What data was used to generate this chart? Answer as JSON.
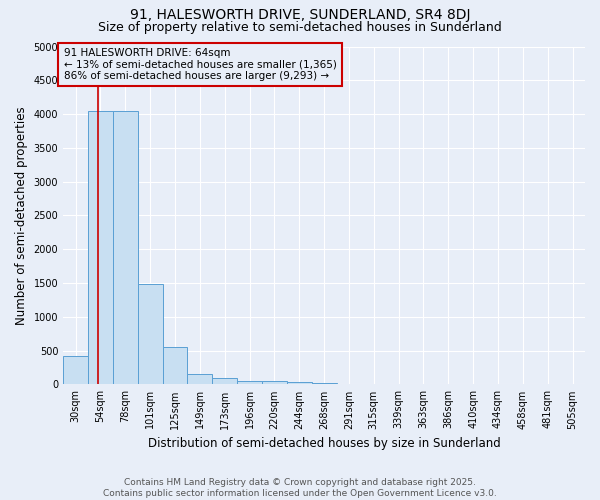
{
  "title": "91, HALESWORTH DRIVE, SUNDERLAND, SR4 8DJ",
  "subtitle": "Size of property relative to semi-detached houses in Sunderland",
  "xlabel": "Distribution of semi-detached houses by size in Sunderland",
  "ylabel": "Number of semi-detached properties",
  "bin_labels": [
    "30sqm",
    "54sqm",
    "78sqm",
    "101sqm",
    "125sqm",
    "149sqm",
    "173sqm",
    "196sqm",
    "220sqm",
    "244sqm",
    "268sqm",
    "291sqm",
    "315sqm",
    "339sqm",
    "363sqm",
    "386sqm",
    "410sqm",
    "434sqm",
    "458sqm",
    "481sqm",
    "505sqm"
  ],
  "bar_heights": [
    425,
    4050,
    4050,
    1480,
    550,
    155,
    90,
    55,
    50,
    40,
    25,
    0,
    0,
    0,
    0,
    0,
    0,
    0,
    0,
    0
  ],
  "bar_color": "#c8dff2",
  "bar_edgecolor": "#5a9fd4",
  "property_bin_index": 1,
  "property_line_color": "#cc0000",
  "annotation_line1": "91 HALESWORTH DRIVE: 64sqm",
  "annotation_line2": "← 13% of semi-detached houses are smaller (1,365)",
  "annotation_line3": "86% of semi-detached houses are larger (9,293) →",
  "annotation_box_color": "#cc0000",
  "ylim": [
    0,
    5000
  ],
  "yticks": [
    0,
    500,
    1000,
    1500,
    2000,
    2500,
    3000,
    3500,
    4000,
    4500,
    5000
  ],
  "background_color": "#e8eef8",
  "grid_color": "#ffffff",
  "footer_line1": "Contains HM Land Registry data © Crown copyright and database right 2025.",
  "footer_line2": "Contains public sector information licensed under the Open Government Licence v3.0.",
  "title_fontsize": 10,
  "subtitle_fontsize": 9,
  "axis_label_fontsize": 8.5,
  "tick_fontsize": 7,
  "annotation_fontsize": 7.5,
  "footer_fontsize": 6.5
}
